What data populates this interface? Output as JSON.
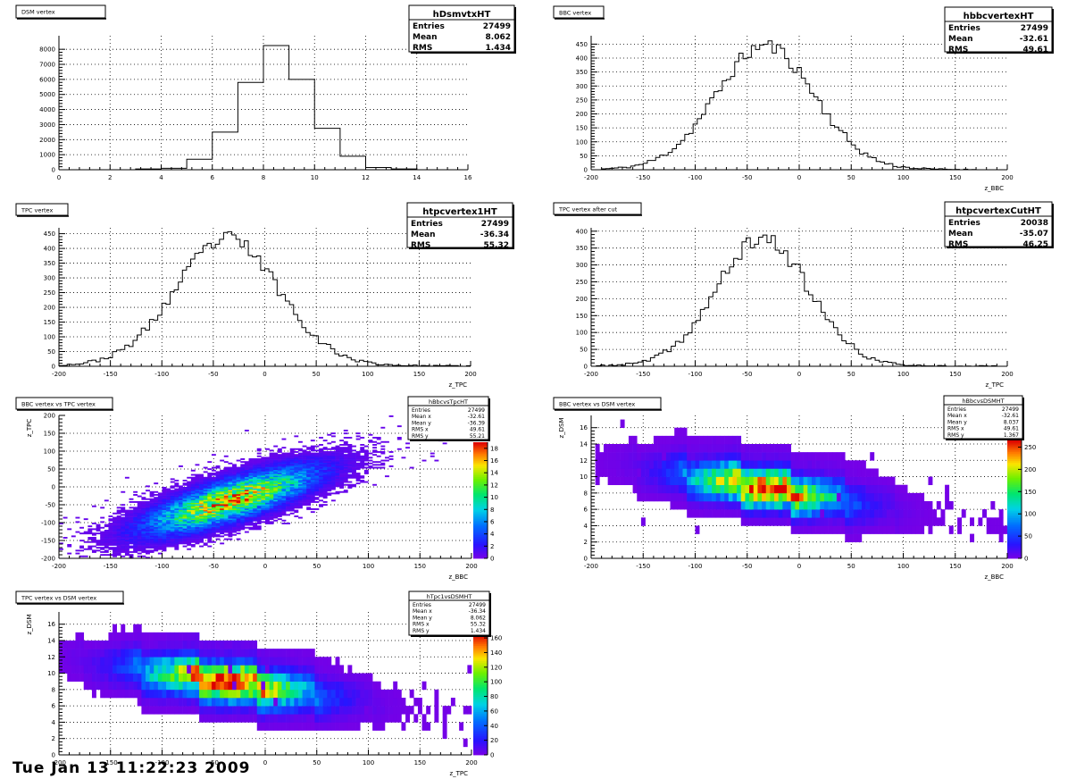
{
  "footer": "Tue Jan 13 11:22:23 2009",
  "chart_data": [
    {
      "type": "histogram",
      "title": "DSM vertex",
      "stats": {
        "name": "hDsmvtxHT",
        "rows": [
          [
            "Entries",
            "27499"
          ],
          [
            "Mean",
            "8.062"
          ],
          [
            "RMS",
            "1.434"
          ]
        ]
      },
      "xlabel": "",
      "xlim": [
        0,
        16
      ],
      "ylim": [
        0,
        8900
      ],
      "xticks": [
        0,
        2,
        4,
        6,
        8,
        10,
        12,
        14,
        16
      ],
      "yticks": [
        0,
        1000,
        2000,
        3000,
        4000,
        5000,
        6000,
        7000,
        8000
      ],
      "bin_edges": [
        3,
        4,
        5,
        6,
        7,
        8,
        9,
        10,
        11,
        12,
        13,
        14
      ],
      "counts": [
        50,
        100,
        700,
        2500,
        5800,
        8250,
        6000,
        2750,
        900,
        150,
        50
      ]
    },
    {
      "type": "histogram",
      "title": "BBC vertex",
      "stats": {
        "name": "hbbcvertexHT",
        "rows": [
          [
            "Entries",
            "27499"
          ],
          [
            "Mean",
            "-32.61"
          ],
          [
            "RMS",
            "49.61"
          ]
        ]
      },
      "xlabel": "z_BBC",
      "xlim": [
        -200,
        200
      ],
      "ylim": [
        0,
        480
      ],
      "xticks": [
        -200,
        -150,
        -100,
        -50,
        0,
        50,
        100,
        150,
        200
      ],
      "yticks": [
        0,
        50,
        100,
        150,
        200,
        250,
        300,
        350,
        400,
        450
      ],
      "mean": -32.61,
      "sigma": 47,
      "peak": 440,
      "bin_width": 4,
      "x_range": [
        -190,
        175
      ],
      "baseline": 5,
      "seed": 11
    },
    {
      "type": "histogram",
      "title": "TPC vertex",
      "stats": {
        "name": "htpcvertex1HT",
        "rows": [
          [
            "Entries",
            "27499"
          ],
          [
            "Mean",
            "-36.34"
          ],
          [
            "RMS",
            "55.32"
          ]
        ]
      },
      "xlabel": "z_TPC",
      "xlim": [
        -200,
        200
      ],
      "ylim": [
        0,
        470
      ],
      "xticks": [
        -200,
        -150,
        -100,
        -50,
        0,
        50,
        100,
        150,
        200
      ],
      "yticks": [
        0,
        50,
        100,
        150,
        200,
        250,
        300,
        350,
        400,
        450
      ],
      "mean": -36.34,
      "sigma": 50,
      "peak": 425,
      "bin_width": 4,
      "x_range": [
        -200,
        200
      ],
      "baseline": 8,
      "seed": 23
    },
    {
      "type": "histogram",
      "title": "TPC vertex after cut",
      "stats": {
        "name": "htpcvertexCutHT",
        "rows": [
          [
            "Entries",
            "20038"
          ],
          [
            "Mean",
            "-35.07"
          ],
          [
            "RMS",
            "46.25"
          ]
        ]
      },
      "xlabel": "z_TPC",
      "xlim": [
        -200,
        200
      ],
      "ylim": [
        0,
        410
      ],
      "xticks": [
        -200,
        -150,
        -100,
        -50,
        0,
        50,
        100,
        150,
        200
      ],
      "yticks": [
        0,
        50,
        100,
        150,
        200,
        250,
        300,
        350,
        400
      ],
      "mean": -35.07,
      "sigma": 44,
      "peak": 375,
      "bin_width": 4,
      "x_range": [
        -195,
        195
      ],
      "baseline": 4,
      "seed": 37
    },
    {
      "type": "heatmap",
      "title": "BBC vertex vs TPC vertex",
      "stats": {
        "name": "hBbcvsTpcHT",
        "rows": [
          [
            "Entries",
            "27499"
          ],
          [
            "Mean x",
            "-32.61"
          ],
          [
            "Mean y",
            "-36.39"
          ],
          [
            "RMS x",
            "49.61"
          ],
          [
            "RMS y",
            "55.21"
          ]
        ]
      },
      "xlabel": "z_BBC",
      "ylabel": "z_TPC",
      "xlim": [
        -200,
        200
      ],
      "ylim": [
        -200,
        200
      ],
      "xticks": [
        -200,
        -150,
        -100,
        -50,
        0,
        50,
        100,
        150,
        200
      ],
      "yticks": [
        -200,
        -150,
        -100,
        -50,
        0,
        50,
        100,
        150,
        200
      ],
      "zmax": 19,
      "zticks": [
        0,
        2,
        4,
        6,
        8,
        10,
        12,
        14,
        16,
        18
      ],
      "mode": "correlation",
      "mean_x": -32.61,
      "mean_y": -36.39,
      "sigma_x": 49.61,
      "sigma_y": 55.21,
      "rho": 0.78,
      "nx": 100,
      "ny": 100,
      "seed": 5
    },
    {
      "type": "heatmap",
      "title": "BBC vertex vs DSM vertex",
      "stats": {
        "name": "hBbcvsDSMHT",
        "rows": [
          [
            "Entries",
            "27499"
          ],
          [
            "Mean x",
            "-32.61"
          ],
          [
            "Mean y",
            "8.037"
          ],
          [
            "RMS x",
            "49.61"
          ],
          [
            "RMS y",
            "1.367"
          ]
        ]
      },
      "xlabel": "z_BBC",
      "ylabel": "z_DSM",
      "xlim": [
        -200,
        200
      ],
      "ylim": [
        0,
        17.5
      ],
      "xticks": [
        -200,
        -150,
        -100,
        -50,
        0,
        50,
        100,
        150,
        200
      ],
      "yticks": [
        0,
        2,
        4,
        6,
        8,
        10,
        12,
        14,
        16
      ],
      "zmax": 265,
      "zticks": [
        0,
        50,
        100,
        150,
        200,
        250
      ],
      "mode": "bands",
      "nx": 100,
      "mean_x": -32.61,
      "sigma_x": 49.61,
      "slope": -0.02,
      "y0": 8.1,
      "bands": [
        [
          4,
          0.02
        ],
        [
          5,
          0.1
        ],
        [
          6,
          0.4
        ],
        [
          7,
          0.75
        ],
        [
          8,
          1.0
        ],
        [
          9,
          0.8
        ],
        [
          10,
          0.45
        ],
        [
          11,
          0.12
        ],
        [
          12,
          0.04
        ],
        [
          13,
          0.02
        ]
      ],
      "seed": 9
    },
    {
      "type": "heatmap",
      "title": "TPC vertex vs DSM vertex",
      "stats": {
        "name": "hTpc1vsDSMHT",
        "rows": [
          [
            "Entries",
            "27499"
          ],
          [
            "Mean x",
            "-36.34"
          ],
          [
            "Mean y",
            "8.062"
          ],
          [
            "RMS x",
            "55.32"
          ],
          [
            "RMS y",
            "1.434"
          ]
        ]
      },
      "xlabel": "z_TPC",
      "ylabel": "z_DSM",
      "xlim": [
        -200,
        200
      ],
      "ylim": [
        0,
        17.5
      ],
      "xticks": [
        -200,
        -150,
        -100,
        -50,
        0,
        50,
        100,
        150,
        200
      ],
      "yticks": [
        0,
        2,
        4,
        6,
        8,
        10,
        12,
        14,
        16
      ],
      "zmax": 165,
      "zticks": [
        0,
        20,
        40,
        60,
        80,
        100,
        120,
        140,
        160
      ],
      "mode": "bands",
      "nx": 100,
      "mean_x": -36.34,
      "sigma_x": 55.32,
      "slope": -0.018,
      "y0": 8.3,
      "bands": [
        [
          4,
          0.02
        ],
        [
          5,
          0.08
        ],
        [
          6,
          0.3
        ],
        [
          7,
          0.6
        ],
        [
          8,
          0.95
        ],
        [
          9,
          0.9
        ],
        [
          10,
          0.6
        ],
        [
          11,
          0.2
        ],
        [
          12,
          0.06
        ],
        [
          13,
          0.03
        ]
      ],
      "seed": 17
    }
  ]
}
